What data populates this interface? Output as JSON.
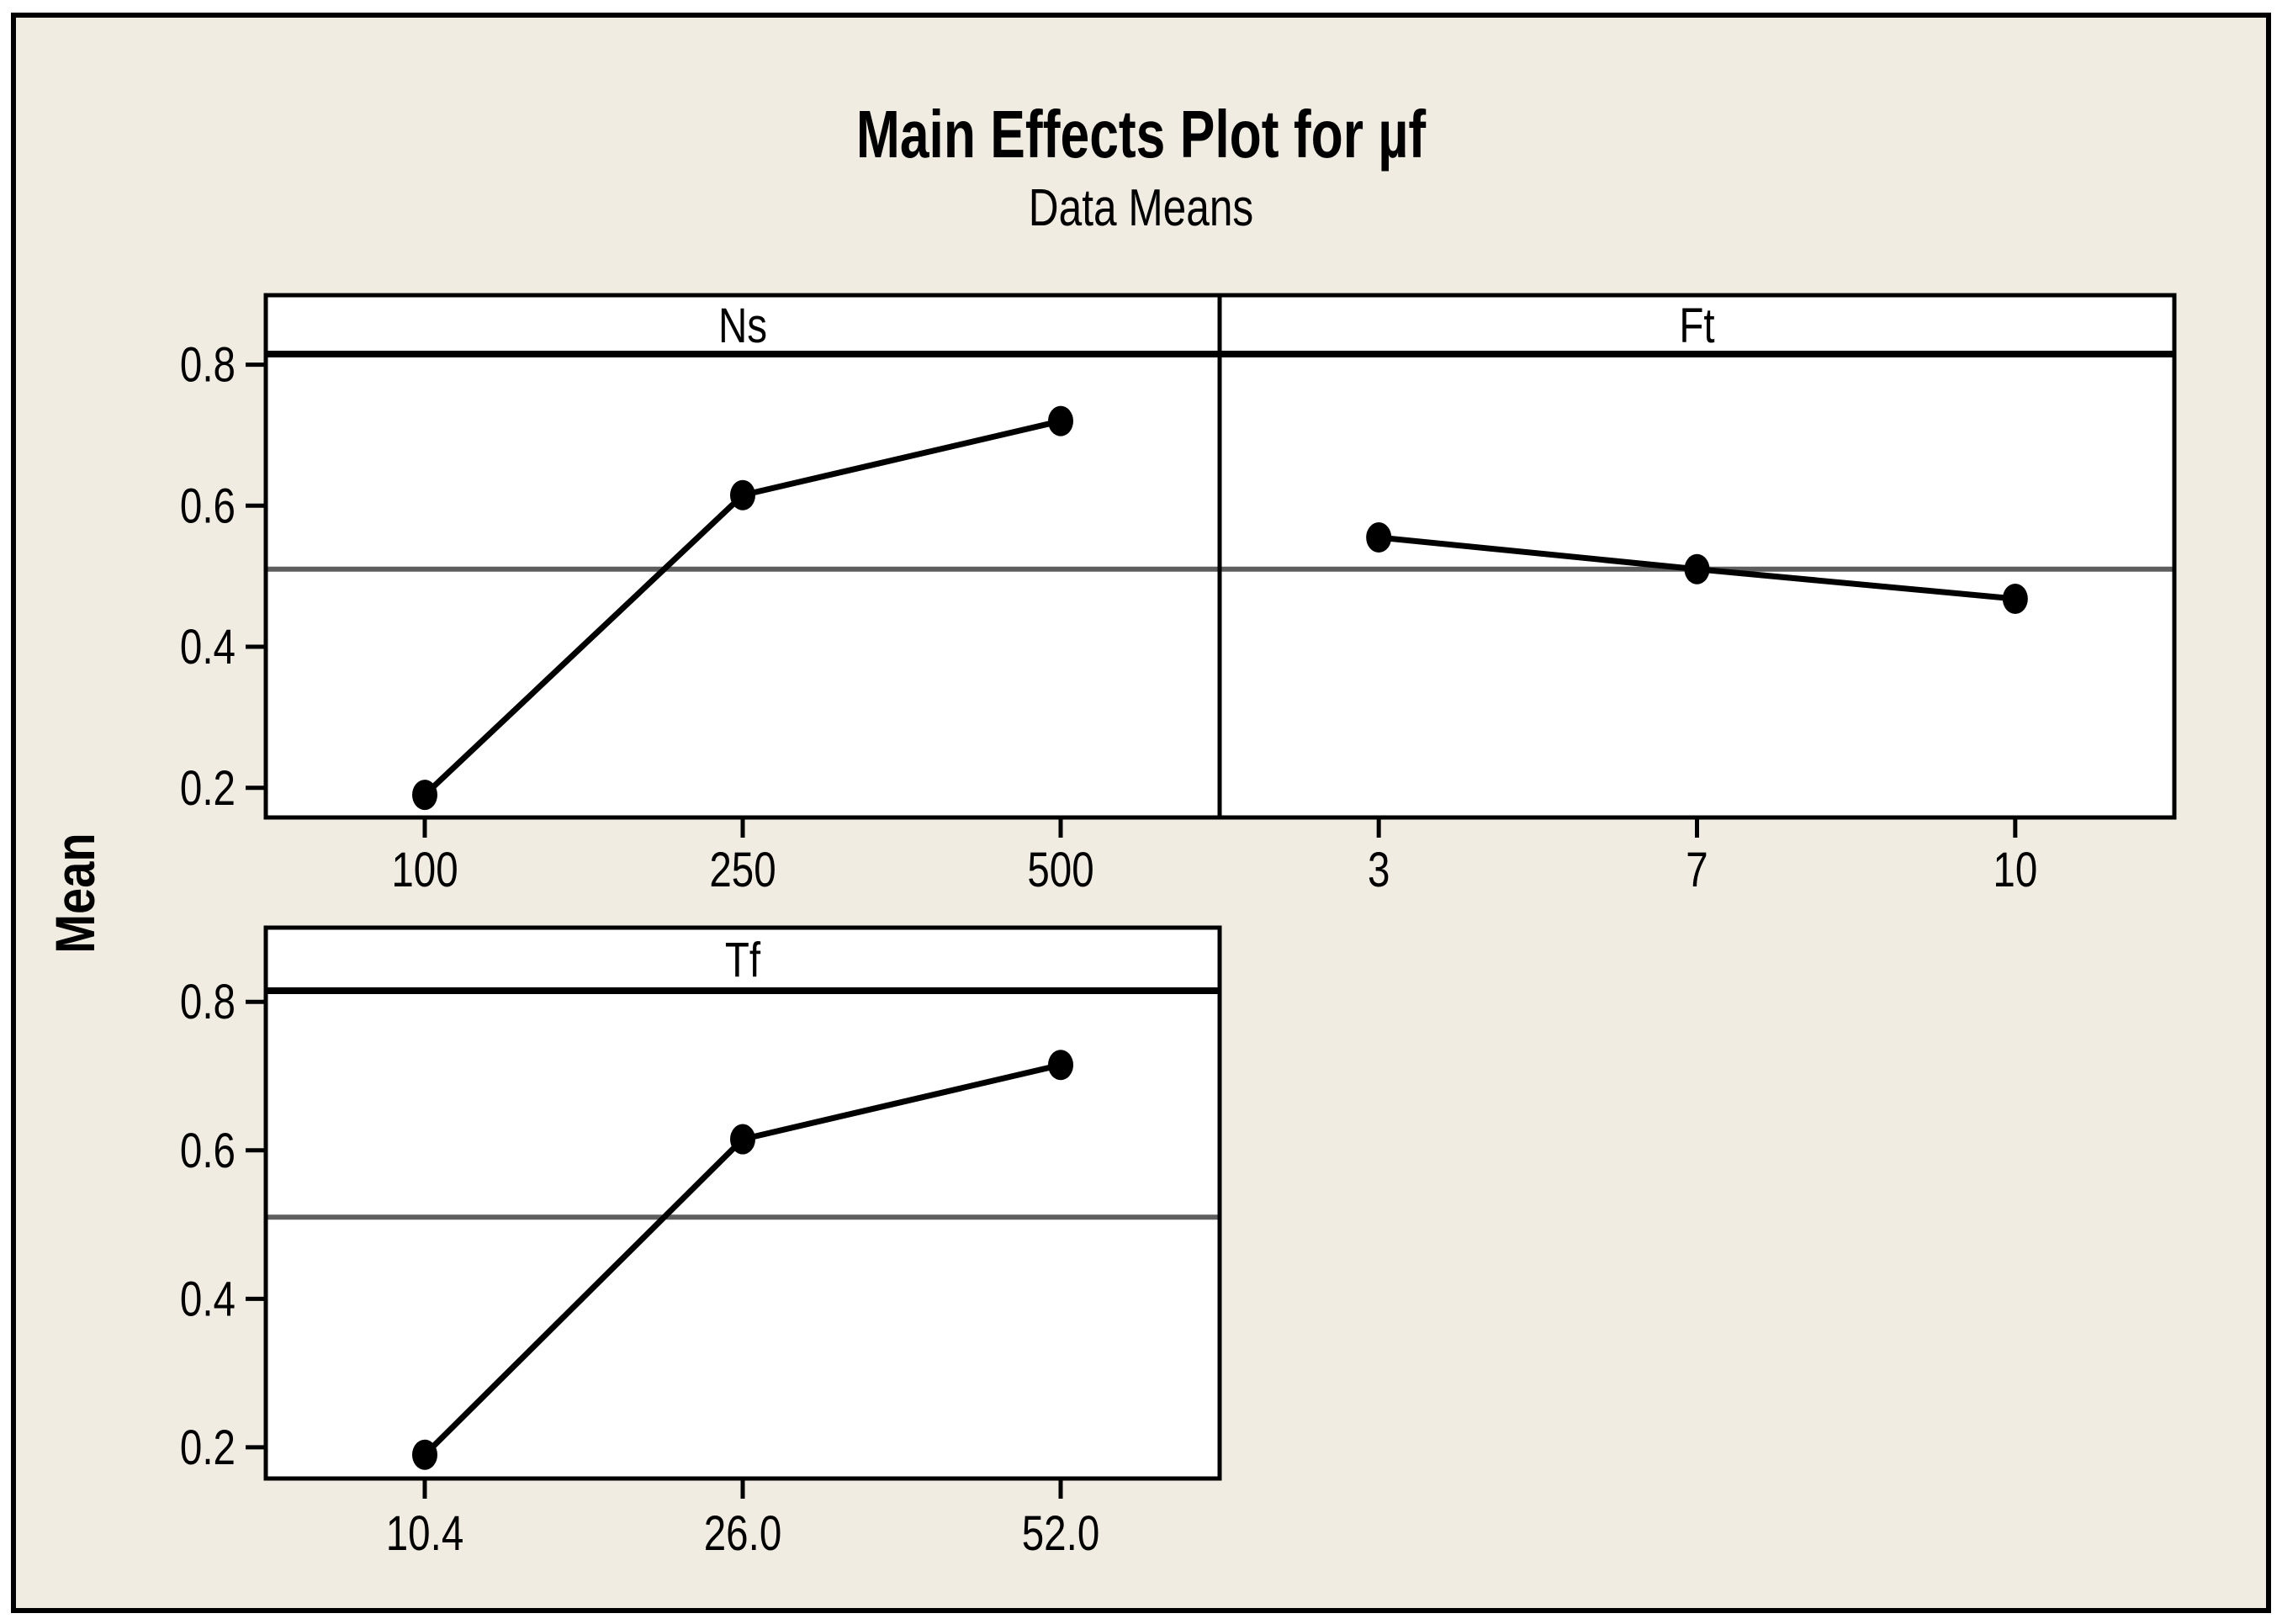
{
  "figure": {
    "title": "Main Effects Plot for µf",
    "subtitle": "Data Means",
    "ylabel": "Mean",
    "colors": {
      "background": "#F1ECE1",
      "panel_background": "#FFFFFF",
      "border": "#000000",
      "data_line": "#000000",
      "marker": "#000000",
      "mean_reference_line": "#5E5E5E",
      "text": "#000000"
    }
  },
  "chart_data": {
    "type": "line",
    "title": "Main Effects Plot for µf",
    "subtitle": "Data Means",
    "ylabel": "Mean",
    "xlabel": "",
    "ylim": [
      0.158,
      0.815
    ],
    "yticks": [
      "0.2",
      "0.4",
      "0.6",
      "0.8"
    ],
    "ytick_values": [
      0.2,
      0.4,
      0.6,
      0.8
    ],
    "overall_mean_reference": 0.51,
    "grid": "horizontal mean reference line only",
    "legend": null,
    "panel_header_position": "top",
    "panels": [
      {
        "factor": "Ns",
        "row": 0,
        "col": 0,
        "categories": [
          "100",
          "250",
          "500"
        ],
        "values": [
          0.19,
          0.615,
          0.72
        ]
      },
      {
        "factor": "Ft",
        "row": 0,
        "col": 1,
        "categories": [
          "3",
          "7",
          "10"
        ],
        "values": [
          0.555,
          0.51,
          0.468
        ]
      },
      {
        "factor": "Tf",
        "row": 1,
        "col": 0,
        "categories": [
          "10.4",
          "26.0",
          "52.0"
        ],
        "values": [
          0.19,
          0.615,
          0.715
        ]
      }
    ]
  }
}
